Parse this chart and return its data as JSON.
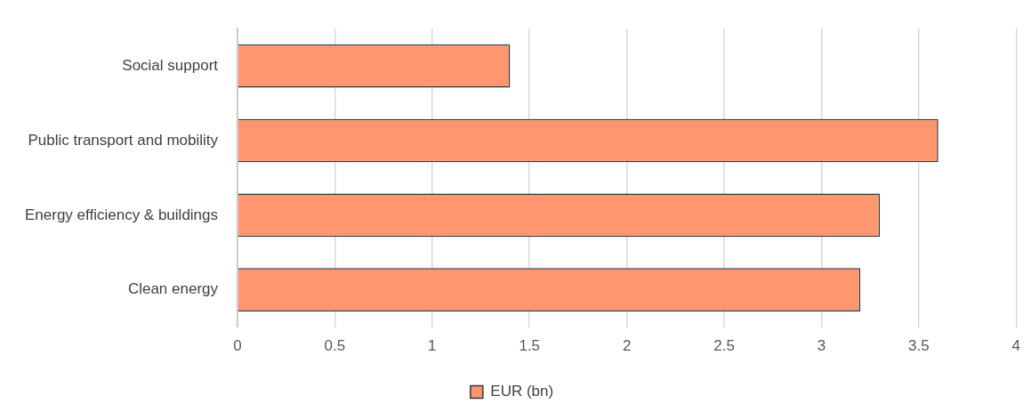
{
  "chart_data": {
    "type": "bar",
    "orientation": "horizontal",
    "categories": [
      "Social support",
      "Public transport and mobility",
      "Energy efficiency & buildings",
      "Clean energy"
    ],
    "series": [
      {
        "name": "EUR (bn)",
        "color": "#ff9670",
        "values": [
          1.4,
          3.6,
          3.3,
          3.2
        ]
      }
    ],
    "xlim": [
      0,
      4
    ],
    "xticks": [
      0,
      0.5,
      1,
      1.5,
      2,
      2.5,
      3,
      3.5,
      4
    ],
    "grid": "x",
    "legend": "bottom"
  }
}
